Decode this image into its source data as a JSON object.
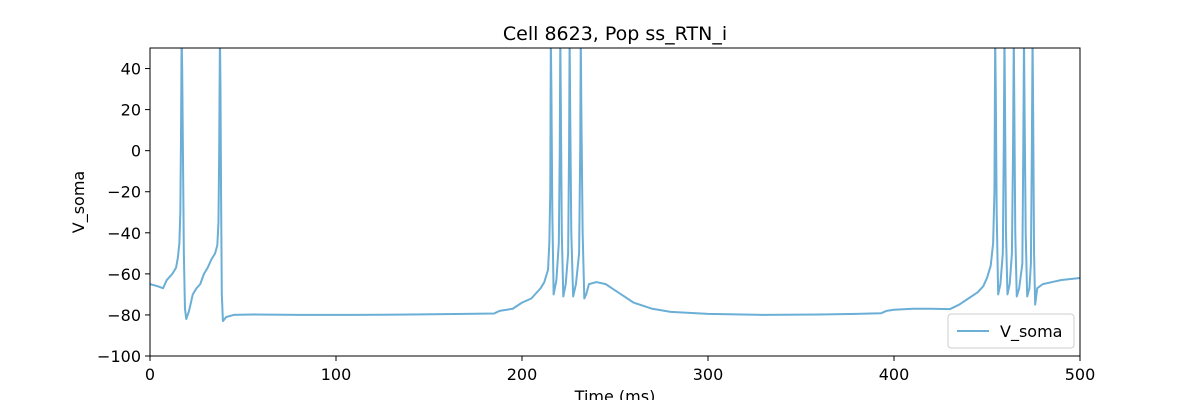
{
  "chart_data": {
    "type": "line",
    "title": "Cell 8623, Pop ss_RTN_i",
    "xlabel": "Time (ms)",
    "ylabel": "V_soma",
    "xlim": [
      0,
      500
    ],
    "ylim": [
      -100,
      50
    ],
    "xticks": [
      0,
      100,
      200,
      300,
      400,
      500
    ],
    "yticks": [
      -100,
      -80,
      -60,
      -40,
      -20,
      0,
      20,
      40
    ],
    "grid": false,
    "legend_position": "bottom-right",
    "series": [
      {
        "name": "V_soma",
        "color": "#6baed6",
        "points": [
          [
            0,
            -65
          ],
          [
            4,
            -66
          ],
          [
            7,
            -67
          ],
          [
            9,
            -63
          ],
          [
            12,
            -60
          ],
          [
            14,
            -57
          ],
          [
            15,
            -52
          ],
          [
            15.8,
            -45
          ],
          [
            16.3,
            -30
          ],
          [
            16.7,
            10
          ],
          [
            17,
            55
          ],
          [
            17.3,
            40
          ],
          [
            17.7,
            0
          ],
          [
            18.2,
            -50
          ],
          [
            18.8,
            -77
          ],
          [
            19.5,
            -82
          ],
          [
            21,
            -78
          ],
          [
            23,
            -70
          ],
          [
            25,
            -67
          ],
          [
            27,
            -65
          ],
          [
            29,
            -60
          ],
          [
            31,
            -57
          ],
          [
            33,
            -53
          ],
          [
            35,
            -50
          ],
          [
            36.2,
            -46
          ],
          [
            36.8,
            -35
          ],
          [
            37.2,
            0
          ],
          [
            37.6,
            55
          ],
          [
            37.9,
            30
          ],
          [
            38.2,
            -20
          ],
          [
            38.6,
            -70
          ],
          [
            39.2,
            -83
          ],
          [
            41,
            -81
          ],
          [
            45,
            -80
          ],
          [
            55,
            -79.8
          ],
          [
            80,
            -80
          ],
          [
            110,
            -80
          ],
          [
            140,
            -79.8
          ],
          [
            170,
            -79.5
          ],
          [
            185,
            -79.3
          ],
          [
            188,
            -78
          ],
          [
            195,
            -77
          ],
          [
            200,
            -74
          ],
          [
            205,
            -72
          ],
          [
            210,
            -67
          ],
          [
            212,
            -64
          ],
          [
            214,
            -58
          ],
          [
            214.7,
            -45
          ],
          [
            215.2,
            -20
          ],
          [
            215.5,
            55
          ],
          [
            215.8,
            30
          ],
          [
            216.3,
            -30
          ],
          [
            217,
            -70
          ],
          [
            218.5,
            -63
          ],
          [
            219.8,
            -45
          ],
          [
            220.3,
            0
          ],
          [
            220.6,
            55
          ],
          [
            220.9,
            20
          ],
          [
            221.4,
            -40
          ],
          [
            222.2,
            -71
          ],
          [
            223.5,
            -65
          ],
          [
            224.8,
            -50
          ],
          [
            225.3,
            0
          ],
          [
            225.6,
            55
          ],
          [
            225.9,
            20
          ],
          [
            226.5,
            -40
          ],
          [
            227.5,
            -71
          ],
          [
            229,
            -65
          ],
          [
            230.7,
            -50
          ],
          [
            231.3,
            0
          ],
          [
            231.6,
            55
          ],
          [
            231.9,
            20
          ],
          [
            232.6,
            -40
          ],
          [
            233.5,
            -72
          ],
          [
            234.5,
            -70
          ],
          [
            236,
            -65
          ],
          [
            240,
            -64
          ],
          [
            245,
            -65
          ],
          [
            250,
            -68
          ],
          [
            255,
            -71
          ],
          [
            260,
            -74
          ],
          [
            270,
            -77
          ],
          [
            280,
            -78.5
          ],
          [
            300,
            -79.5
          ],
          [
            330,
            -80
          ],
          [
            360,
            -79.8
          ],
          [
            380,
            -79.5
          ],
          [
            393,
            -79.2
          ],
          [
            396,
            -78
          ],
          [
            400,
            -77.5
          ],
          [
            410,
            -77
          ],
          [
            420,
            -77
          ],
          [
            430,
            -77.2
          ],
          [
            435,
            -75
          ],
          [
            440,
            -72
          ],
          [
            445,
            -69
          ],
          [
            448,
            -66
          ],
          [
            450,
            -62
          ],
          [
            452,
            -56
          ],
          [
            453.3,
            -45
          ],
          [
            454,
            -20
          ],
          [
            454.4,
            55
          ],
          [
            454.7,
            30
          ],
          [
            455.2,
            -30
          ],
          [
            456,
            -70
          ],
          [
            457.2,
            -65
          ],
          [
            458.5,
            -50
          ],
          [
            459,
            0
          ],
          [
            459.4,
            55
          ],
          [
            459.7,
            20
          ],
          [
            460.2,
            -40
          ],
          [
            461,
            -70
          ],
          [
            462.2,
            -65
          ],
          [
            463.4,
            -50
          ],
          [
            464,
            0
          ],
          [
            464.4,
            55
          ],
          [
            464.7,
            20
          ],
          [
            465.2,
            -40
          ],
          [
            466,
            -71
          ],
          [
            467.3,
            -67
          ],
          [
            469,
            -55
          ],
          [
            469.5,
            0
          ],
          [
            469.9,
            55
          ],
          [
            470.2,
            20
          ],
          [
            470.8,
            -40
          ],
          [
            471.6,
            -71
          ],
          [
            472.8,
            -67
          ],
          [
            473.6,
            -55
          ],
          [
            474.1,
            0
          ],
          [
            474.5,
            55
          ],
          [
            474.8,
            20
          ],
          [
            475.3,
            -50
          ],
          [
            475.9,
            -75
          ],
          [
            477,
            -67
          ],
          [
            480,
            -65
          ],
          [
            485,
            -64
          ],
          [
            490,
            -63
          ],
          [
            495,
            -62.5
          ],
          [
            500,
            -62
          ]
        ]
      }
    ]
  }
}
